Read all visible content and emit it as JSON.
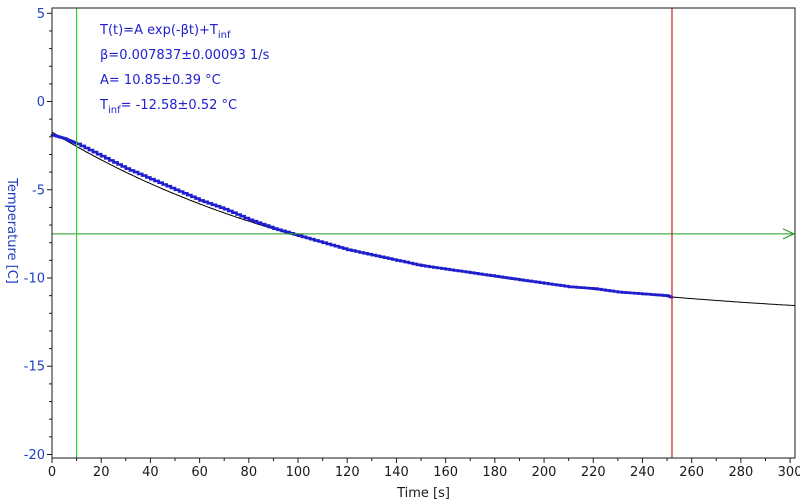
{
  "chart_data": {
    "type": "line",
    "xlabel": "Time [s]",
    "ylabel": "Temperature [C]",
    "xlim": [
      0,
      302
    ],
    "ylim": [
      -20.2,
      5.3
    ],
    "xticks": [
      0,
      20,
      40,
      60,
      80,
      100,
      120,
      140,
      160,
      180,
      200,
      220,
      240,
      260,
      280,
      300
    ],
    "yticks": [
      5,
      0,
      -5,
      -10,
      -15,
      -20
    ],
    "grid": false,
    "annotations": [
      {
        "main": "T(t)=A exp(-βt)+T",
        "sub": "inf",
        "rest": ""
      },
      {
        "main": "β=0.007837±0.00093 1/s",
        "sub": "",
        "rest": ""
      },
      {
        "main": "A= 10.85±0.39 °C",
        "sub": "",
        "rest": ""
      },
      {
        "main": "T",
        "sub": "inf",
        "rest": "= -12.58±0.52 °C"
      }
    ],
    "fit": {
      "A": 10.85,
      "beta": 0.007837,
      "T_inf": -12.58
    },
    "series": [
      {
        "kind": "measured",
        "color": "#1f1fcf",
        "x": [
          0,
          5,
          10,
          20,
          30,
          40,
          50,
          60,
          70,
          80,
          90,
          100,
          110,
          120,
          130,
          140,
          150,
          160,
          170,
          180,
          190,
          200,
          210,
          220,
          230,
          240,
          250,
          252
        ],
        "y": [
          -1.9,
          -2.1,
          -2.4,
          -3.1,
          -3.8,
          -4.4,
          -5.0,
          -5.6,
          -6.1,
          -6.7,
          -7.2,
          -7.6,
          -8.0,
          -8.4,
          -8.7,
          -9.0,
          -9.3,
          -9.5,
          -9.7,
          -9.9,
          -10.1,
          -10.3,
          -10.5,
          -10.6,
          -10.8,
          -10.9,
          -11.0,
          -11.1
        ]
      }
    ],
    "fit_curve_color": "#000000",
    "hline": {
      "y": -7.5,
      "color": "#1e9c1e",
      "arrow": true
    },
    "vlines": [
      {
        "x": 10,
        "color": "#33cc33"
      },
      {
        "x": 252,
        "color": "#cc2222"
      }
    ],
    "axis_color": "#1a1a1a",
    "ylabel_color": "#1f3fbf"
  }
}
